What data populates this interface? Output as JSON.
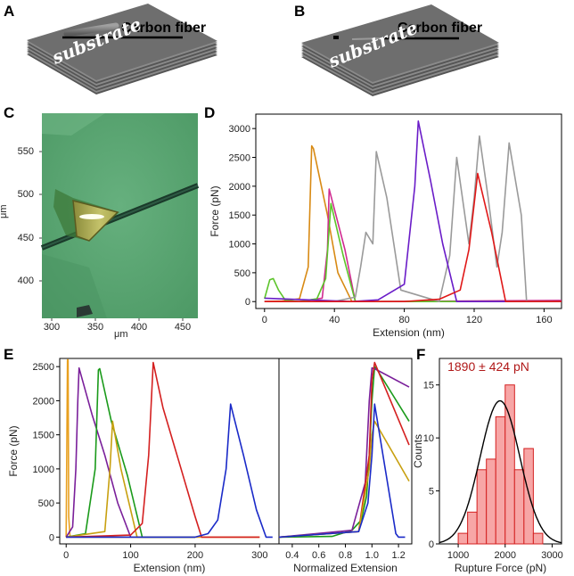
{
  "panels": {
    "A": {
      "label": "A",
      "fiber_label": "Carbon fiber",
      "substrate_label": "substrate"
    },
    "B": {
      "label": "B",
      "fiber_label": "Carbon fiber",
      "substrate_label": "substrate"
    },
    "C": {
      "label": "C",
      "unit_y": "μm",
      "unit_x": "μm",
      "yticks": [
        "550",
        "500",
        "450",
        "400"
      ],
      "xticks": [
        "300",
        "350",
        "400",
        "450"
      ]
    },
    "D": {
      "label": "D"
    },
    "E": {
      "label": "E"
    },
    "F": {
      "label": "F",
      "annotation": "1890 ± 424 pN"
    }
  },
  "chart_data": [
    {
      "id": "D",
      "type": "line",
      "title": "",
      "xlabel": "Extension (nm)",
      "ylabel": "Force (pN)",
      "xlim": [
        -5,
        170
      ],
      "ylim": [
        -120,
        3250
      ],
      "xticks": [
        0,
        40,
        80,
        120,
        160
      ],
      "yticks": [
        0,
        500,
        1000,
        1500,
        2000,
        2500,
        3000
      ],
      "series": [
        {
          "name": "orange",
          "color": "#d88a14",
          "x": [
            0,
            10,
            20,
            25,
            27,
            28,
            36,
            42,
            50,
            60
          ],
          "y": [
            0,
            10,
            50,
            600,
            2700,
            2650,
            1500,
            500,
            0,
            0
          ]
        },
        {
          "name": "magenta",
          "color": "#d02a90",
          "x": [
            0,
            20,
            33,
            36,
            37,
            46,
            52,
            60,
            170
          ],
          "y": [
            0,
            0,
            60,
            900,
            1950,
            900,
            0,
            0,
            20
          ]
        },
        {
          "name": "green",
          "color": "#5cc42a",
          "x": [
            0,
            3,
            5,
            8,
            12,
            20,
            30,
            35,
            38,
            45,
            52,
            60,
            170
          ],
          "y": [
            50,
            380,
            400,
            200,
            20,
            0,
            50,
            400,
            1700,
            800,
            0,
            0,
            0
          ]
        },
        {
          "name": "grey",
          "color": "#9a9a9a",
          "x": [
            0,
            40,
            52,
            55,
            58,
            62,
            64,
            70,
            78,
            100,
            106,
            110,
            117,
            120,
            123,
            128,
            133,
            136,
            140,
            147,
            150,
            165
          ],
          "y": [
            0,
            0,
            80,
            600,
            1200,
            1000,
            2600,
            1800,
            200,
            0,
            800,
            2500,
            1000,
            1800,
            2870,
            1800,
            600,
            1200,
            2750,
            1500,
            0,
            0
          ]
        },
        {
          "name": "purple",
          "color": "#6a1cc8",
          "x": [
            0,
            50,
            65,
            80,
            86,
            88,
            95,
            102,
            110,
            170
          ],
          "y": [
            60,
            0,
            30,
            300,
            2000,
            3130,
            2100,
            1000,
            0,
            0
          ]
        },
        {
          "name": "red",
          "color": "#e01818",
          "x": [
            0,
            80,
            100,
            112,
            117,
            122,
            130,
            138,
            170
          ],
          "y": [
            0,
            0,
            40,
            200,
            900,
            2220,
            1200,
            0,
            0
          ]
        }
      ]
    },
    {
      "id": "E-left",
      "type": "line",
      "title": "",
      "xlabel": "Extension (nm)",
      "ylabel": "Force (pN)",
      "xlim": [
        -10,
        330
      ],
      "ylim": [
        -100,
        2620
      ],
      "xticks": [
        0,
        100,
        200,
        300
      ],
      "yticks": [
        0,
        500,
        1000,
        1500,
        2000,
        2500
      ],
      "series": [
        {
          "name": "orange",
          "color": "#e8a020",
          "x": [
            0,
            2,
            3,
            4,
            6,
            300
          ],
          "y": [
            0,
            2600,
            2600,
            300,
            0,
            0
          ]
        },
        {
          "name": "purple",
          "color": "#7a1f9a",
          "x": [
            0,
            10,
            15,
            18,
            20,
            40,
            60,
            80,
            100
          ],
          "y": [
            0,
            150,
            1000,
            2000,
            2480,
            1800,
            1200,
            500,
            0
          ]
        },
        {
          "name": "green",
          "color": "#1a9a1a",
          "x": [
            0,
            30,
            45,
            50,
            52,
            70,
            95,
            118,
            200
          ],
          "y": [
            0,
            50,
            1000,
            2450,
            2470,
            1700,
            900,
            0,
            0
          ]
        },
        {
          "name": "gold",
          "color": "#c8a010",
          "x": [
            0,
            60,
            68,
            72,
            85,
            110,
            200
          ],
          "y": [
            0,
            80,
            1000,
            1700,
            1000,
            0,
            0
          ]
        },
        {
          "name": "red",
          "color": "#d42020",
          "x": [
            0,
            100,
            118,
            128,
            135,
            150,
            175,
            200,
            210,
            300
          ],
          "y": [
            0,
            30,
            200,
            1200,
            2560,
            1900,
            1100,
            300,
            0,
            0
          ]
        },
        {
          "name": "blue",
          "color": "#1a2ac8",
          "x": [
            0,
            200,
            220,
            235,
            248,
            255,
            275,
            295,
            310,
            320
          ],
          "y": [
            0,
            0,
            50,
            250,
            1000,
            1950,
            1200,
            400,
            0,
            0
          ]
        }
      ]
    },
    {
      "id": "E-right",
      "type": "line",
      "title": "",
      "xlabel": "Normalized Extension",
      "ylabel": "",
      "xlim": [
        0.3,
        1.3
      ],
      "ylim": [
        -100,
        2620
      ],
      "xticks": [
        0.4,
        0.6,
        0.8,
        1.0,
        1.2
      ],
      "series": [
        {
          "name": "green",
          "color": "#1a9a1a",
          "x": [
            0.3,
            0.7,
            0.85,
            0.92,
            0.96,
            0.98,
            1.0,
            1.02,
            1.04,
            1.28
          ],
          "y": [
            0,
            10,
            100,
            250,
            600,
            1200,
            2000,
            2500,
            2450,
            1700
          ]
        },
        {
          "name": "purple",
          "color": "#7a1f9a",
          "x": [
            0.3,
            0.85,
            0.95,
            0.98,
            1.0,
            1.02,
            1.28
          ],
          "y": [
            0,
            100,
            800,
            2000,
            2480,
            2470,
            2200
          ]
        },
        {
          "name": "red",
          "color": "#d42020",
          "x": [
            0.3,
            0.9,
            0.98,
            1.0,
            1.02,
            1.28
          ],
          "y": [
            0,
            80,
            1200,
            2300,
            2560,
            1350
          ]
        },
        {
          "name": "gold",
          "color": "#c8a010",
          "x": [
            0.3,
            0.9,
            0.98,
            1.0,
            1.02,
            1.28
          ],
          "y": [
            0,
            80,
            1000,
            1500,
            1700,
            820
          ]
        },
        {
          "name": "blue",
          "color": "#1a2ac8",
          "x": [
            0.3,
            0.9,
            0.97,
            1.0,
            1.02,
            1.1,
            1.18,
            1.2,
            1.25
          ],
          "y": [
            0,
            80,
            500,
            1200,
            1950,
            1000,
            50,
            0,
            0
          ]
        }
      ]
    },
    {
      "id": "F",
      "type": "bar",
      "title": "",
      "xlabel": "Rupture Force (pN)",
      "ylabel": "Counts",
      "xlim": [
        600,
        3200
      ],
      "ylim": [
        0,
        17.5
      ],
      "xticks": [
        1000,
        2000,
        3000
      ],
      "yticks": [
        0,
        5,
        10,
        15
      ],
      "bin_edges": [
        600,
        1000,
        1200,
        1400,
        1600,
        1800,
        2000,
        2200,
        2400,
        2600,
        2800,
        3200
      ],
      "categories": [
        "600-1000",
        "1000-1200",
        "1200-1400",
        "1400-1600",
        "1600-1800",
        "1800-2000",
        "2000-2200",
        "2200-2400",
        "2400-2600",
        "2600-2800",
        "2800-3200"
      ],
      "values": [
        0,
        1,
        3,
        7,
        8,
        12,
        15,
        7,
        9,
        1,
        0
      ],
      "fit": {
        "type": "gaussian",
        "mean": 1890,
        "sd": 424,
        "peak": 13.5,
        "color": "#000000"
      },
      "bar_color": "#f7a6a6",
      "edge_color": "#d42020",
      "annotation": "1890 ± 424 pN",
      "annotation_color": "#b01818"
    }
  ]
}
